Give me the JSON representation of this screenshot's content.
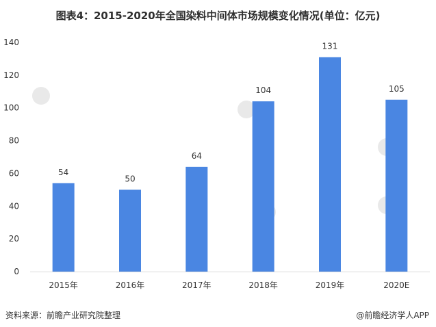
{
  "title": "图表4：2015-2020年全国染料中间体市场规模变化情况(单位：亿元)",
  "source": "资料来源：前瞻产业研究院整理",
  "credit": "@前瞻经济学人APP",
  "colors": {
    "bar": "#4a86e2",
    "axis": "#d9d9d9",
    "text": "#333333"
  },
  "chart_data": {
    "type": "bar",
    "title": "图表4：2015-2020年全国染料中间体市场规模变化情况(单位：亿元)",
    "categories": [
      "2015年",
      "2016年",
      "2017年",
      "2018年",
      "2019年",
      "2020E"
    ],
    "values": [
      54,
      50,
      64,
      104,
      131,
      105
    ],
    "ylim": [
      0,
      140
    ],
    "yticks": [
      0,
      20,
      40,
      60,
      80,
      100,
      120,
      140
    ],
    "grid": false,
    "xlabel": "",
    "ylabel": ""
  }
}
